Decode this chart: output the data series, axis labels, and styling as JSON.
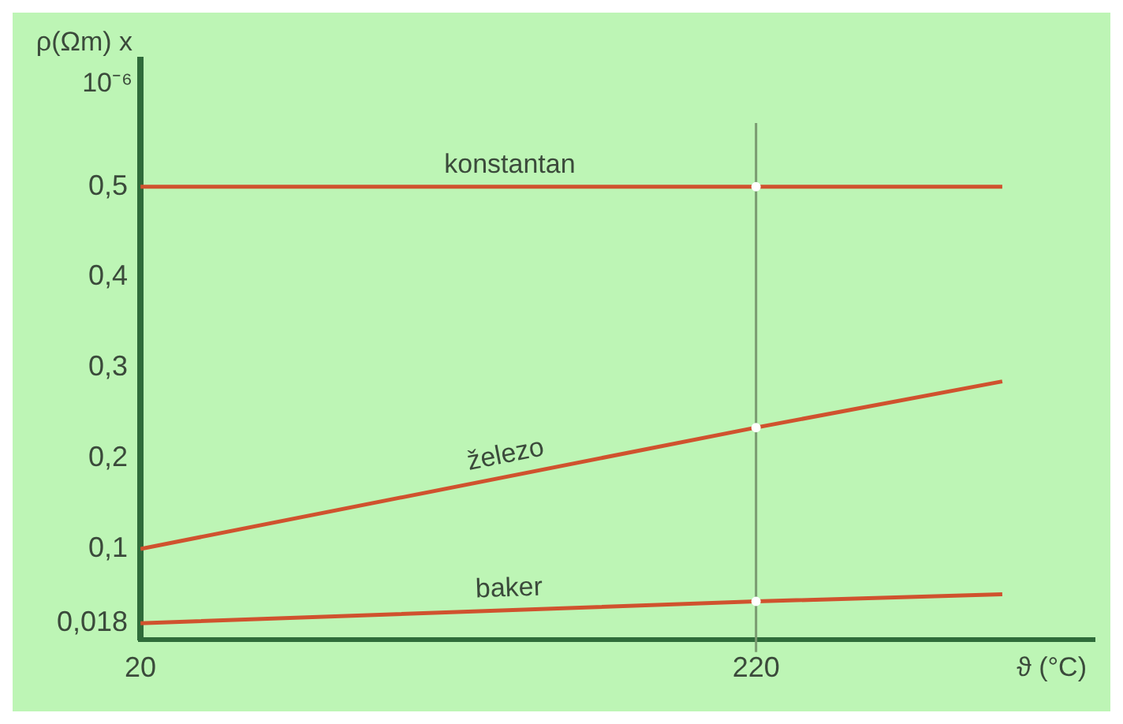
{
  "chart_data": {
    "type": "line",
    "ylabel": "ρ(Ωm) x 10⁻⁶",
    "xlabel": "ϑ (°C)",
    "xlim": [
      20,
      330
    ],
    "xticks": [
      20,
      220
    ],
    "ylim": [
      0,
      0.64
    ],
    "yticks": [
      {
        "value": 0.018,
        "label": "0,018"
      },
      {
        "value": 0.1,
        "label": "0,1"
      },
      {
        "value": 0.2,
        "label": "0,2"
      },
      {
        "value": 0.3,
        "label": "0,3"
      },
      {
        "value": 0.4,
        "label": "0,4"
      },
      {
        "value": 0.5,
        "label": "0,5"
      }
    ],
    "series": [
      {
        "name": "konstantan",
        "color": "#d0522e",
        "marker": "none",
        "x": [
          20,
          220,
          300
        ],
        "values": [
          0.5,
          0.5,
          0.5
        ]
      },
      {
        "name": "železo",
        "color": "#d0522e",
        "marker": "none",
        "x": [
          20,
          220,
          300
        ],
        "values": [
          0.1,
          0.234,
          0.285
        ]
      },
      {
        "name": "baker",
        "color": "#d0522e",
        "marker": "none",
        "x": [
          20,
          220,
          300
        ],
        "values": [
          0.018,
          0.042,
          0.05
        ]
      },
      {
        "type": "scatter",
        "color": "#ffffff",
        "marker": "circle",
        "x": [
          220,
          220,
          220
        ],
        "values": [
          0.5,
          0.234,
          0.042
        ]
      }
    ],
    "ref_lines": [
      {
        "axis": "x",
        "value": 220,
        "color": "#7a9a70"
      }
    ],
    "grid": false,
    "legend": false
  }
}
